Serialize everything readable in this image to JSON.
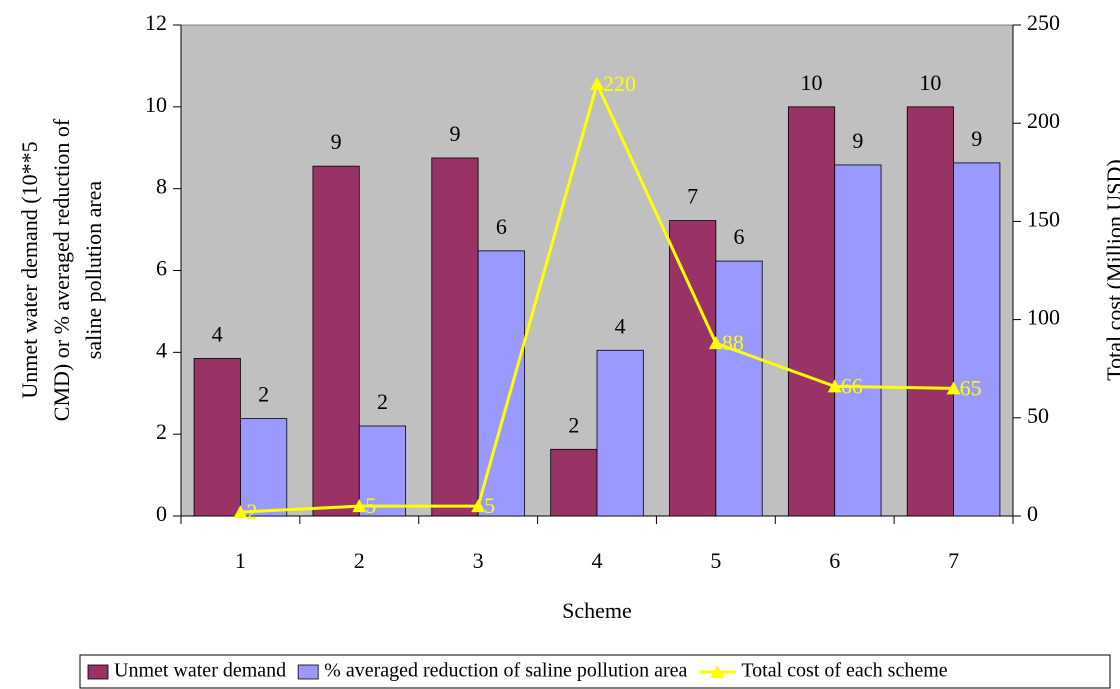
{
  "chart_data": {
    "type": "bar_line",
    "categories": [
      "1",
      "2",
      "3",
      "4",
      "5",
      "6",
      "7"
    ],
    "xlabel": "Scheme",
    "ylabel": [
      "Unmet water demand (10**5",
      "CMD) or % averaged reduction of",
      "saline pollution area"
    ],
    "y2label": "Total cost (Million USD)",
    "ylim": [
      0,
      12
    ],
    "yticks": [
      0,
      2,
      4,
      6,
      8,
      10,
      12
    ],
    "y2lim": [
      0,
      250
    ],
    "y2ticks": [
      0,
      50,
      100,
      150,
      200,
      250
    ],
    "plot_background": "#c0c0c0",
    "legend": "bottom",
    "series": [
      {
        "name": "Unmet water demand",
        "type": "bar",
        "color": "#993366",
        "values": [
          3.85,
          8.55,
          8.75,
          1.63,
          7.22,
          10,
          10
        ],
        "value_labels": [
          "4",
          "9",
          "9",
          "2",
          "7",
          "10",
          "10"
        ]
      },
      {
        "name": "% averaged reduction of saline pollution area",
        "type": "bar",
        "color": "#9999ff",
        "values": [
          2.38,
          2.2,
          6.48,
          4.05,
          6.23,
          8.58,
          8.63
        ],
        "value_labels": [
          "2",
          "2",
          "6",
          "4",
          "6",
          "9",
          "9"
        ]
      },
      {
        "name": "Total cost of each scheme",
        "type": "line",
        "axis": "y2",
        "color": "#ffff00",
        "values": [
          2,
          5,
          5,
          220,
          88,
          66,
          65
        ]
      }
    ]
  }
}
